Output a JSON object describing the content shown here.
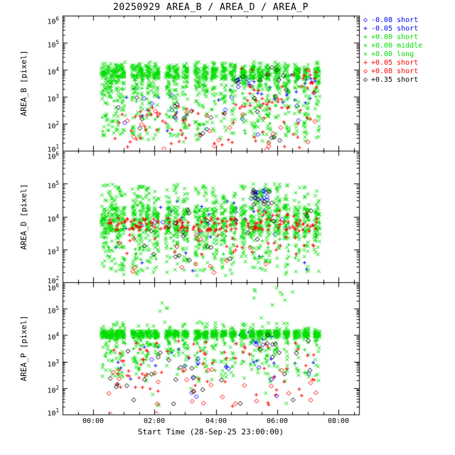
{
  "chart_data": {
    "type": "scatter",
    "title": "20250929 AREA_B / AREA_D / AREA_P",
    "xlabel": "Start Time (28-Sep-25 23:00:00)",
    "y_tick_base": "10",
    "seed": 1234567,
    "burst_halfwidth": 0.09,
    "burst_centers": [
      1.35,
      1.55,
      1.75,
      1.95,
      2.35,
      2.55,
      2.8,
      3.05,
      3.45,
      3.7,
      4.0,
      4.4,
      4.65,
      4.95,
      5.25,
      5.55,
      5.9,
      6.2,
      6.45,
      6.7,
      7.0,
      7.3,
      7.65,
      7.95,
      8.3
    ],
    "x_axis": {
      "range": [
        0,
        9.67
      ],
      "major_tick_hours": [
        1,
        3,
        5,
        7,
        9
      ],
      "tick_labels": [
        "00:00",
        "02:00",
        "04:00",
        "06:00",
        "08:00"
      ]
    },
    "panels": [
      {
        "id": "AREA_B",
        "ylabel": "AREA_B [pixel]",
        "ylog_range": [
          1,
          6
        ]
      },
      {
        "id": "AREA_D",
        "ylabel": "AREA_D [pixel]",
        "ylog_range": [
          2,
          6
        ]
      },
      {
        "id": "AREA_P",
        "ylabel": "AREA_P [pixel]",
        "ylog_range": [
          1,
          6
        ]
      }
    ],
    "series": [
      {
        "name": "-0.08 short",
        "symbol": "diamond",
        "color": "#0000ff",
        "blobs": {
          "AREA_B": [
            [
              9,
              5.6,
              6.5,
              3.2,
              4.2
            ],
            [
              13,
              1.6,
              8.2,
              1.5,
              3.3
            ]
          ],
          "AREA_D": [
            [
              16,
              6.15,
              6.7,
              4.5,
              4.85
            ],
            [
              9,
              1.8,
              8.0,
              3.3,
              4.2
            ]
          ],
          "AREA_P": [
            [
              13,
              1.6,
              8.2,
              1.4,
              3.3
            ],
            [
              5,
              5.9,
              6.6,
              3.5,
              4.2
            ]
          ]
        }
      },
      {
        "name": "-0.05 short",
        "symbol": "plus",
        "color": "#0000ff",
        "blobs": {
          "AREA_B": [
            [
              22,
              5.7,
              8.3,
              2.7,
              4.1
            ],
            [
              10,
              1.8,
              5.5,
              1.7,
              3.3
            ]
          ],
          "AREA_D": [
            [
              16,
              2.8,
              7.0,
              3.9,
              4.5
            ],
            [
              10,
              1.6,
              8.2,
              2.3,
              3.7
            ]
          ],
          "AREA_P": [
            [
              18,
              1.6,
              8.2,
              2.2,
              3.6
            ],
            [
              7,
              5.7,
              7.0,
              3.7,
              4.15
            ]
          ]
        }
      },
      {
        "name": "+0.00 short",
        "symbol": "plus",
        "color": "#00dc00",
        "burst": {
          "AREA_B": {
            "n": 7,
            "fb": 0.5,
            "band": [
              3.6,
              4.1
            ],
            "ft": 0.5,
            "tail": [
              1.6,
              3.6
            ]
          },
          "AREA_D": {
            "n": 7,
            "fb": 0.6,
            "band": [
              3.6,
              4.2
            ],
            "ft": 0.4,
            "tail": [
              2.6,
              3.6
            ]
          },
          "AREA_P": {
            "n": 6,
            "fb": 0.6,
            "band": [
              3.9,
              4.15
            ],
            "ft": 0.4,
            "tail": [
              2.5,
              3.9
            ]
          }
        }
      },
      {
        "name": "+0.00 middle",
        "symbol": "x",
        "color": "#00dc00",
        "burst": {
          "AREA_B": {
            "n": 26,
            "fb": 0.45,
            "band": [
              3.75,
              4.15
            ],
            "ft": 0.5,
            "tail": [
              1.5,
              3.75
            ],
            "spike": [
              4.15,
              4.3
            ]
          },
          "AREA_D": {
            "n": 26,
            "fb": 0.5,
            "band": [
              3.65,
              4.35
            ],
            "ft": 0.35,
            "tail": [
              2.3,
              3.65
            ],
            "spike": [
              4.35,
              5.0
            ]
          },
          "AREA_P": {
            "n": 24,
            "fb": 0.7,
            "band": [
              3.95,
              4.18
            ],
            "ft": 0.25,
            "tail": [
              2.4,
              3.95
            ],
            "spike": [
              4.18,
              4.5
            ]
          }
        }
      },
      {
        "name": "+0.00 long",
        "symbol": "x",
        "color": "#00dc00",
        "burst": {
          "AREA_B": {
            "n": 22,
            "fb": 0.4,
            "band": [
              3.7,
              4.1
            ],
            "ft": 0.55,
            "tail": [
              1.3,
              3.7
            ],
            "spike": [
              4.1,
              4.25
            ]
          },
          "AREA_D": {
            "n": 22,
            "fb": 0.5,
            "band": [
              3.6,
              4.3
            ],
            "ft": 0.35,
            "tail": [
              2.2,
              3.6
            ],
            "spike": [
              4.3,
              4.9
            ]
          },
          "AREA_P": {
            "n": 20,
            "fb": 0.65,
            "band": [
              3.9,
              4.15
            ],
            "ft": 0.3,
            "tail": [
              2.2,
              3.9
            ],
            "spike": [
              4.15,
              4.4
            ]
          }
        },
        "blobs": {
          "AREA_P": [
            [
              8,
              6.2,
              7.6,
              4.4,
              5.8
            ],
            [
              5,
              3.1,
              3.45,
              4.3,
              5.9
            ],
            [
              3,
              6.9,
              7.3,
              5.5,
              6.0
            ],
            [
              6,
              1.5,
              8.0,
              1.1,
              2.2
            ]
          ]
        }
      },
      {
        "name": "+0.05 short",
        "symbol": "plus",
        "color": "#ff0000",
        "blobs": {
          "AREA_B": [
            [
              30,
              1.5,
              4.6,
              1.2,
              2.7
            ],
            [
              45,
              5.6,
              8.3,
              2.5,
              4.05
            ],
            [
              25,
              1.5,
              8.3,
              1.1,
              2.4
            ]
          ],
          "AREA_D": [
            [
              150,
              1.45,
              8.3,
              3.55,
              3.95
            ],
            [
              25,
              1.6,
              8.2,
              2.8,
              3.5
            ],
            [
              10,
              5.5,
              8.0,
              4.0,
              4.3
            ]
          ],
          "AREA_P": [
            [
              55,
              1.5,
              8.3,
              2.3,
              3.85
            ],
            [
              18,
              1.5,
              8.3,
              1.3,
              2.3
            ]
          ]
        }
      },
      {
        "name": "+0.08 short",
        "symbol": "diamond",
        "color": "#ff0000",
        "blobs": {
          "AREA_B": [
            [
              20,
              1.5,
              8.3,
              1.0,
              2.5
            ]
          ],
          "AREA_D": [
            [
              14,
              1.6,
              8.2,
              2.2,
              3.5
            ]
          ],
          "AREA_P": [
            [
              26,
              1.5,
              8.3,
              1.0,
              2.7
            ]
          ]
        }
      },
      {
        "name": "+0.35 short",
        "symbol": "diamond",
        "color": "#000000",
        "blobs": {
          "AREA_B": [
            [
              18,
              1.5,
              8.3,
              1.3,
              3.0
            ],
            [
              12,
              5.6,
              8.3,
              3.0,
              4.15
            ]
          ],
          "AREA_D": [
            [
              12,
              6.2,
              6.85,
              4.35,
              4.8
            ],
            [
              14,
              1.6,
              8.2,
              3.3,
              4.2
            ],
            [
              8,
              2.0,
              6.0,
              2.5,
              3.3
            ]
          ],
          "AREA_P": [
            [
              24,
              1.5,
              8.3,
              1.4,
              3.4
            ],
            [
              8,
              5.8,
              8.1,
              3.3,
              4.05
            ]
          ]
        }
      }
    ]
  }
}
